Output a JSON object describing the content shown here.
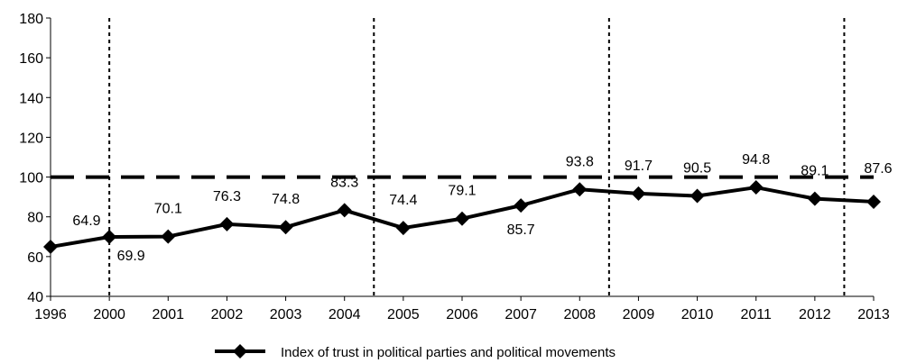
{
  "chart_data": {
    "type": "line",
    "categories": [
      "1996",
      "2000",
      "2001",
      "2002",
      "2003",
      "2004",
      "2005",
      "2006",
      "2007",
      "2008",
      "2009",
      "2010",
      "2011",
      "2012",
      "2013"
    ],
    "series": [
      {
        "name": "Index of trust in political parties and political movements",
        "values": [
          64.9,
          69.9,
          70.1,
          76.3,
          74.8,
          83.3,
          74.4,
          79.1,
          85.7,
          93.8,
          91.7,
          90.5,
          94.8,
          89.1,
          87.6
        ],
        "color": "#000000",
        "marker": "diamond"
      }
    ],
    "data_labels": [
      "64.9",
      "69.9",
      "70.1",
      "76.3",
      "74.8",
      "83.3",
      "74.4",
      "79.1",
      "85.7",
      "93.8",
      "91.7",
      "90.5",
      "94.8",
      "89.1",
      "87.6"
    ],
    "ylim": [
      40,
      180
    ],
    "yticks": [
      40,
      60,
      80,
      100,
      120,
      140,
      160,
      180
    ],
    "reference_line": {
      "y": 100,
      "style": "dashed",
      "color": "#000000"
    },
    "period_separators_after": [
      "1996",
      "2004",
      "2008",
      "2012"
    ],
    "grid": false,
    "legend_position": "bottom",
    "title": "",
    "xlabel": "",
    "ylabel": ""
  }
}
